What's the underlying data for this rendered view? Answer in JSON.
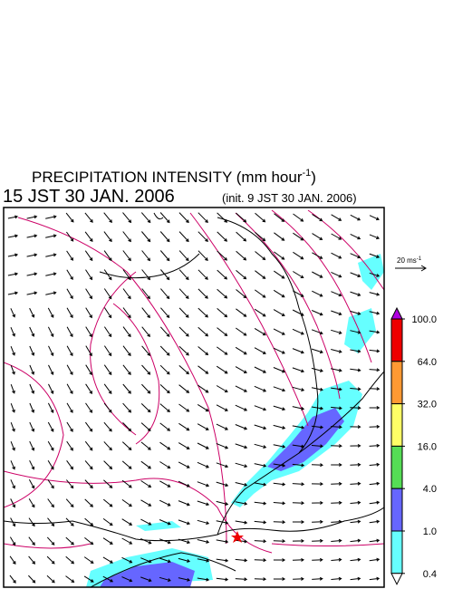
{
  "title": {
    "text": "PRECIPITATION INTENSITY (mm hour",
    "superscript": "-1",
    "close": ")"
  },
  "valid_time": "15 JST 30 JAN. 2006",
  "init_time": "(init. 9 JST 30 JAN. 2006)",
  "vector_scale": {
    "text": "20 ms",
    "superscript": "-1"
  },
  "colorbar": {
    "levels": [
      {
        "value": 100,
        "label": "100.0"
      },
      {
        "value": 64,
        "label": "64.0"
      },
      {
        "value": 32,
        "label": "32.0"
      },
      {
        "value": 16,
        "label": "16.0"
      },
      {
        "value": 4,
        "label": "4.0"
      },
      {
        "value": 1,
        "label": "1.0"
      },
      {
        "value": 0.4,
        "label": "0.4"
      }
    ],
    "colors": [
      "#b000e0",
      "#ee0000",
      "#ff9933",
      "#ffff66",
      "#55dd55",
      "#6666ff",
      "#66ffff",
      "#ffffff"
    ]
  }
}
